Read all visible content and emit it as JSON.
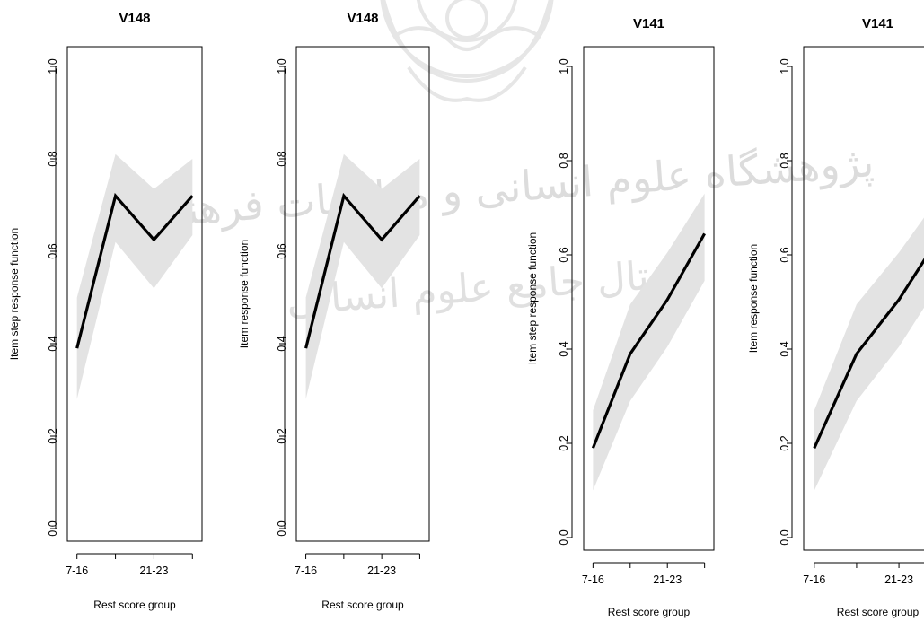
{
  "watermark": {
    "line1": "پژوهشگاه علوم انسانی و مطالعات فرهنگی",
    "line2": "پرتال جامع علوم انسانی"
  },
  "chart_data": [
    {
      "type": "line",
      "title": "V148",
      "xlabel": "Rest score group",
      "ylabel": "Item step response function",
      "x": [
        1,
        2,
        3,
        4
      ],
      "x_tick_labels": [
        "7-16",
        "",
        "21-23",
        ""
      ],
      "y_ticks": [
        "0.0",
        "0.2",
        "0.4",
        "0.6",
        "0.8",
        "1.0"
      ],
      "ylim": [
        0,
        1
      ],
      "series": [
        {
          "values": [
            0.39,
            0.72,
            0.625,
            0.72
          ],
          "ci_lower": [
            0.28,
            0.62,
            0.52,
            0.635
          ],
          "ci_upper": [
            0.5,
            0.81,
            0.735,
            0.8
          ]
        }
      ]
    },
    {
      "type": "line",
      "title": "V148",
      "xlabel": "Rest score group",
      "ylabel": "Item response function",
      "x": [
        1,
        2,
        3,
        4
      ],
      "x_tick_labels": [
        "7-16",
        "",
        "21-23",
        ""
      ],
      "y_ticks": [
        "0.0",
        "0.2",
        "0.4",
        "0.6",
        "0.8",
        "1.0"
      ],
      "ylim": [
        0,
        1
      ],
      "series": [
        {
          "values": [
            0.39,
            0.72,
            0.625,
            0.72
          ],
          "ci_lower": [
            0.28,
            0.62,
            0.52,
            0.635
          ],
          "ci_upper": [
            0.5,
            0.81,
            0.735,
            0.8
          ]
        }
      ]
    },
    {
      "type": "line",
      "title": "V141",
      "xlabel": "Rest score group",
      "ylabel": "Item step response function",
      "x": [
        1,
        2,
        3,
        4
      ],
      "x_tick_labels": [
        "7-16",
        "",
        "21-23",
        ""
      ],
      "y_ticks": [
        "0.0",
        "0.2",
        "0.4",
        "0.6",
        "0.8",
        "1.0"
      ],
      "ylim": [
        0,
        1
      ],
      "series": [
        {
          "values": [
            0.19,
            0.39,
            0.505,
            0.645
          ],
          "ci_lower": [
            0.1,
            0.29,
            0.405,
            0.545
          ],
          "ci_upper": [
            0.27,
            0.495,
            0.605,
            0.73
          ]
        }
      ]
    },
    {
      "type": "line",
      "title": "V141",
      "xlabel": "Rest score group",
      "ylabel": "Item response function",
      "x": [
        1,
        2,
        3,
        4
      ],
      "x_tick_labels": [
        "7-16",
        "",
        "21-23",
        ""
      ],
      "y_ticks": [
        "0.0",
        "0.2",
        "0.4",
        "0.6",
        "0.8",
        "1.0"
      ],
      "ylim": [
        0,
        1
      ],
      "series": [
        {
          "values": [
            0.19,
            0.39,
            0.505,
            0.645
          ],
          "ci_lower": [
            0.1,
            0.29,
            0.405,
            0.545
          ],
          "ci_upper": [
            0.27,
            0.495,
            0.605,
            0.73
          ]
        }
      ]
    }
  ]
}
